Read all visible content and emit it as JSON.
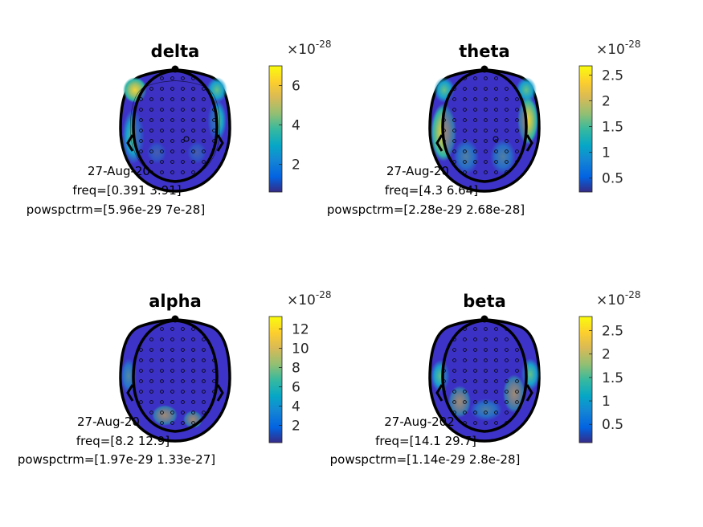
{
  "panels": [
    {
      "title": "delta",
      "exponent_base": "×10",
      "exponent": "-28",
      "colorbar_ticks": [
        "6",
        "4",
        "2"
      ],
      "colorbar_tick_values": [
        6,
        4,
        2
      ],
      "colorbar_range": [
        0.6,
        7.0
      ],
      "info_date": "27-Aug-20",
      "info_freq": "freq=[0.391 3.91]",
      "info_pow": "powspctrm=[5.96e-29 7e-28]"
    },
    {
      "title": "theta",
      "exponent_base": "×10",
      "exponent": "-28",
      "colorbar_ticks": [
        "2.5",
        "2",
        "1.5",
        "1",
        "0.5"
      ],
      "colorbar_tick_values": [
        2.5,
        2,
        1.5,
        1,
        0.5
      ],
      "colorbar_range": [
        0.23,
        2.68
      ],
      "info_date": "27-Aug-20",
      "info_freq": "freq=[4.3 6.64]",
      "info_pow": "powspctrm=[2.28e-29 2.68e-28]"
    },
    {
      "title": "alpha",
      "exponent_base": "×10",
      "exponent": "-28",
      "colorbar_ticks": [
        "12",
        "10",
        "8",
        "6",
        "4",
        "2"
      ],
      "colorbar_tick_values": [
        12,
        10,
        8,
        6,
        4,
        2
      ],
      "colorbar_range": [
        0.2,
        13.3
      ],
      "info_date": "27-Aug-20",
      "info_freq": "freq=[8.2 12.9]",
      "info_pow": "powspctrm=[1.97e-29 1.33e-27]"
    },
    {
      "title": "beta",
      "exponent_base": "×10",
      "exponent": "-28",
      "colorbar_ticks": [
        "2.5",
        "2",
        "1.5",
        "1",
        "0.5"
      ],
      "colorbar_tick_values": [
        2.5,
        2,
        1.5,
        1,
        0.5
      ],
      "colorbar_range": [
        0.11,
        2.8
      ],
      "info_date": "27-Aug-202",
      "info_freq": "freq=[14.1 29.7]",
      "info_pow": "powspctrm=[1.14e-29 2.8e-28]"
    }
  ],
  "colors": {
    "low": "#3e26a8",
    "mid": "#2bb7a6",
    "high": "#f9fb15",
    "outline": "#000000"
  }
}
